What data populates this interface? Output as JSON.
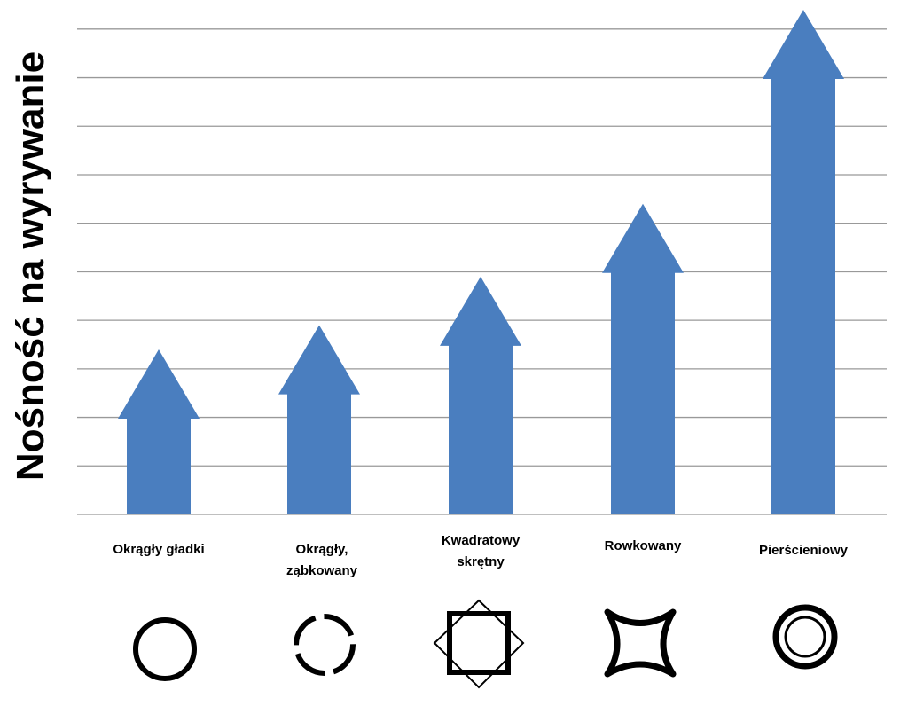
{
  "chart_data": {
    "type": "bar",
    "ylabel": "Nośność na wyrywanie",
    "categories": [
      "Okrągły  gładki",
      "Okrągły,\nząbkowany",
      "Kwadratowy\nskrętny",
      "Rowkowany",
      "Pierścieniowy"
    ],
    "values": [
      3.4,
      3.9,
      4.9,
      6.4,
      10.4
    ],
    "color": "#4a7ebf",
    "ylim": [
      0,
      10.6
    ],
    "yticks": [
      0,
      1,
      2,
      3,
      4,
      5,
      6,
      7,
      8,
      9,
      10
    ],
    "grid": true
  }
}
